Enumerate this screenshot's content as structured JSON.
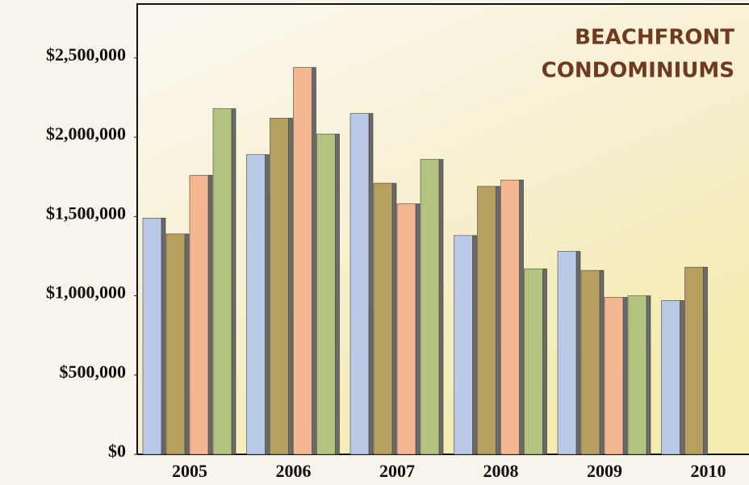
{
  "chart_data": {
    "type": "bar",
    "title": [
      "BEACHFRONT",
      "CONDOMINIUMS"
    ],
    "categories": [
      "2005",
      "2006",
      "2007",
      "2008",
      "2009",
      "2010"
    ],
    "series": [
      {
        "color": "#b9c9e6",
        "values": [
          1490000,
          1890000,
          2150000,
          1380000,
          1280000,
          970000
        ]
      },
      {
        "color": "#b5a060",
        "values": [
          1390000,
          2120000,
          1710000,
          1690000,
          1160000,
          1180000
        ]
      },
      {
        "color": "#f4b78f",
        "values": [
          1760000,
          2440000,
          1580000,
          1730000,
          990000,
          null
        ]
      },
      {
        "color": "#b2c47f",
        "values": [
          2180000,
          2020000,
          1860000,
          1170000,
          1000000,
          null
        ]
      }
    ],
    "ylim": [
      0,
      2840000
    ],
    "yticks": [
      {
        "value": 0,
        "label": "$0"
      },
      {
        "value": 500000,
        "label": "$500,000"
      },
      {
        "value": 1000000,
        "label": "$1,000,000"
      },
      {
        "value": 1500000,
        "label": "$1,500,000"
      },
      {
        "value": 2000000,
        "label": "$2,000,000"
      },
      {
        "value": 2500000,
        "label": "$2,500,000"
      }
    ]
  }
}
